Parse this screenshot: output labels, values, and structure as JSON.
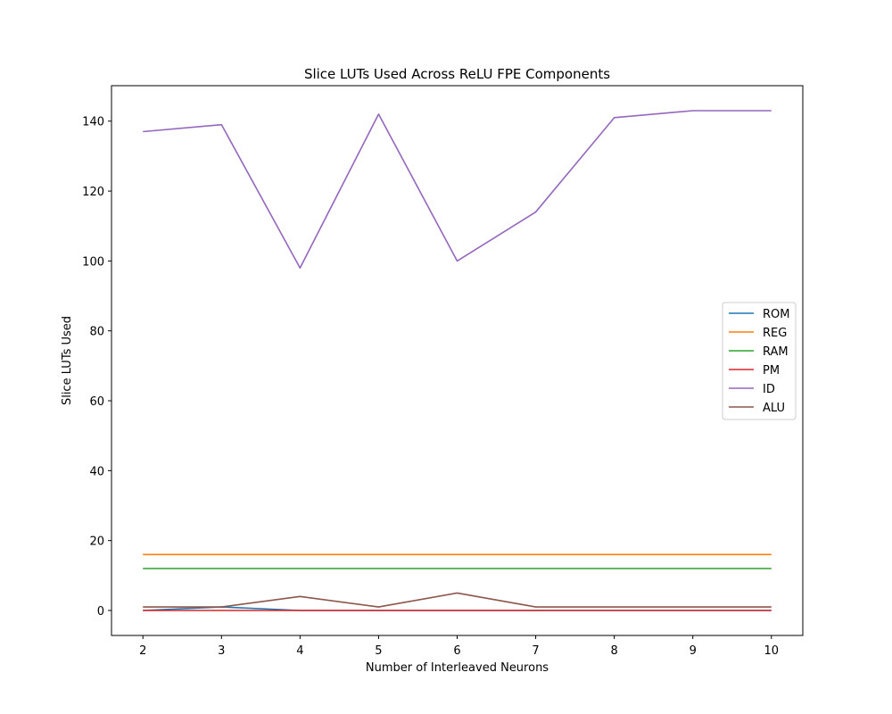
{
  "chart_data": {
    "type": "line",
    "title": "Slice LUTs Used Across ReLU FPE Components",
    "xlabel": "Number of Interleaved Neurons",
    "ylabel": "Slice LUTs Used",
    "x": [
      2,
      3,
      4,
      5,
      6,
      7,
      8,
      9,
      10
    ],
    "xticks": [
      "2",
      "3",
      "4",
      "5",
      "6",
      "7",
      "8",
      "9",
      "10"
    ],
    "yticks": [
      "0",
      "20",
      "40",
      "60",
      "80",
      "100",
      "120",
      "140"
    ],
    "xlim": [
      1.6,
      10.4
    ],
    "ylim": [
      -7.15,
      150.15
    ],
    "grid": false,
    "legend_position": "center-right",
    "series": [
      {
        "name": "ROM",
        "color": "#1f77b4",
        "values": [
          0,
          1,
          0,
          0,
          0,
          0,
          0,
          0,
          0
        ]
      },
      {
        "name": "REG",
        "color": "#ff7f0e",
        "values": [
          16,
          16,
          16,
          16,
          16,
          16,
          16,
          16,
          16
        ]
      },
      {
        "name": "RAM",
        "color": "#2ca02c",
        "values": [
          12,
          12,
          12,
          12,
          12,
          12,
          12,
          12,
          12
        ]
      },
      {
        "name": "PM",
        "color": "#d62728",
        "values": [
          0,
          0,
          0,
          0,
          0,
          0,
          0,
          0,
          0
        ]
      },
      {
        "name": "ID",
        "color": "#9467bd",
        "values": [
          137,
          139,
          98,
          142,
          100,
          114,
          141,
          143,
          143
        ]
      },
      {
        "name": "ALU",
        "color": "#8c564b",
        "values": [
          1,
          1,
          4,
          1,
          5,
          1,
          1,
          1,
          1
        ]
      }
    ]
  }
}
